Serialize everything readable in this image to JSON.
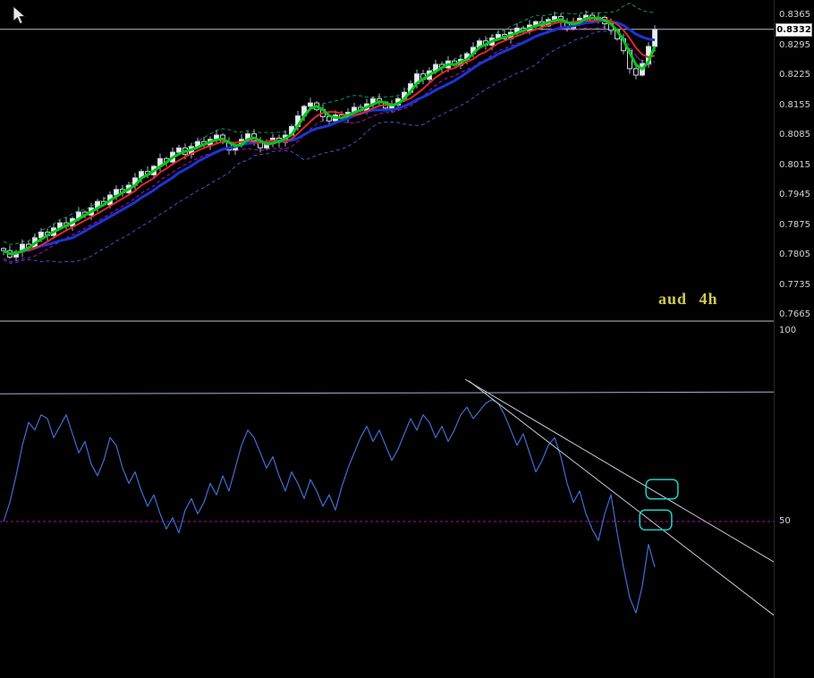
{
  "price_panel": {
    "symbol_label": "aud 4h",
    "current_price_label": "0.8332"
  },
  "price_scale": {
    "ticks": [
      "0.8365",
      "0.8295",
      "0.8225",
      "0.8155",
      "0.8085",
      "0.8015",
      "0.7945",
      "0.7875",
      "0.7805",
      "0.7735",
      "0.7665"
    ]
  },
  "colors": {
    "background": "#000000",
    "candle_up": "#e8edf4",
    "candle_down": "#05070a",
    "candle_border": "#c9d2e0",
    "wick": "#a8b6cc",
    "ma_fast": "#00c814",
    "ma_mid": "#e02828",
    "ma_slow": "#1a35d6",
    "band_upper": "#00a050",
    "band_lower": "#3c55cc",
    "band_mid": "#c800c8",
    "price_line": "#b8bec8",
    "price_tag_bg": "#ffffff",
    "price_tag_text": "#000000",
    "scale_text": "#d4d4d4",
    "symbol_label": "#d2cb4e",
    "osc_line": "#3f6fd4",
    "osc_level": "#a6b4c8",
    "osc_mid": "#c000c0",
    "trendline": "#c2cad4",
    "highlight_box": "#1fd0c8",
    "splitter": "#5e5e5e"
  },
  "chart_data": {
    "type": "candlestick",
    "title": "aud 4h",
    "symbol": "AUD",
    "timeframe": "4h",
    "current_price": 0.8332,
    "price_axis": {
      "max": 0.8365,
      "min": 0.7665,
      "tick_step": 0.007
    },
    "first_open": 0.782,
    "closes": [
      0.7815,
      0.78,
      0.7812,
      0.783,
      0.7822,
      0.7845,
      0.7858,
      0.785,
      0.7868,
      0.788,
      0.7872,
      0.789,
      0.7905,
      0.7898,
      0.7915,
      0.793,
      0.7922,
      0.7945,
      0.7958,
      0.795,
      0.7968,
      0.7985,
      0.8,
      0.7992,
      0.8012,
      0.803,
      0.8022,
      0.8045,
      0.8055,
      0.804,
      0.8058,
      0.807,
      0.8062,
      0.8075,
      0.8085,
      0.8068,
      0.805,
      0.8062,
      0.8075,
      0.8088,
      0.8072,
      0.8055,
      0.8065,
      0.8078,
      0.8068,
      0.8085,
      0.8105,
      0.813,
      0.8152,
      0.816,
      0.8145,
      0.8128,
      0.8118,
      0.8132,
      0.8125,
      0.8138,
      0.815,
      0.8142,
      0.8158,
      0.817,
      0.8162,
      0.8148,
      0.8155,
      0.817,
      0.8185,
      0.8205,
      0.8228,
      0.8215,
      0.8235,
      0.825,
      0.8242,
      0.8258,
      0.8248,
      0.8262,
      0.8275,
      0.829,
      0.8305,
      0.8295,
      0.8312,
      0.832,
      0.831,
      0.8325,
      0.8335,
      0.8328,
      0.8342,
      0.835,
      0.834,
      0.8355,
      0.8362,
      0.8348,
      0.8335,
      0.835,
      0.8358,
      0.8365,
      0.8352,
      0.836,
      0.8345,
      0.833,
      0.831,
      0.8282,
      0.824,
      0.8225,
      0.8252,
      0.8292,
      0.8332
    ],
    "overlays": {
      "ma_fast_period": 3,
      "ma_mid_period": 6,
      "ma_slow_period": 12,
      "band_period": 14,
      "band_mult": 2,
      "band_mid_offset": -0.0018
    },
    "oscillator": {
      "type": "line",
      "range": [
        0,
        100
      ],
      "values": [
        50,
        55,
        62,
        70,
        76,
        74,
        78,
        77,
        72,
        75,
        78,
        73,
        68,
        71,
        65,
        62,
        66,
        72,
        70,
        64,
        60,
        63,
        58,
        54,
        57,
        52,
        48,
        51,
        47,
        53,
        56,
        52,
        55,
        60,
        57,
        62,
        58,
        64,
        70,
        74,
        72,
        68,
        64,
        67,
        62,
        58,
        63,
        60,
        56,
        61,
        58,
        54,
        57,
        53,
        59,
        64,
        68,
        72,
        75,
        71,
        74,
        70,
        66,
        69,
        73,
        77,
        74,
        78,
        76,
        72,
        75,
        71,
        74,
        78,
        80,
        77,
        79,
        81,
        82,
        81,
        78,
        74,
        70,
        73,
        68,
        63,
        66,
        70,
        72,
        67,
        60,
        55,
        58,
        52,
        48,
        45,
        52,
        57,
        47,
        38,
        30,
        26,
        33,
        44,
        38
      ],
      "mid_level": 50,
      "resistance_level": 83.5,
      "scale_labels": [
        {
          "text": "100",
          "value": 100
        },
        {
          "text": "50",
          "value": 50
        }
      ],
      "trendlines": [
        {
          "from_index": 73.7,
          "from_value": 87.3,
          "to_index": 123.0,
          "to_value": 39.4
        },
        {
          "from_index": 74.3,
          "from_value": 86.9,
          "to_index": 123.0,
          "to_value": 25.4
        }
      ],
      "highlight_boxes": [
        {
          "i1": 102.6,
          "i2": 107.7,
          "v1": 61.0,
          "v2": 55.9
        },
        {
          "i1": 101.6,
          "i2": 106.7,
          "v1": 53.0,
          "v2": 47.8
        }
      ]
    }
  }
}
